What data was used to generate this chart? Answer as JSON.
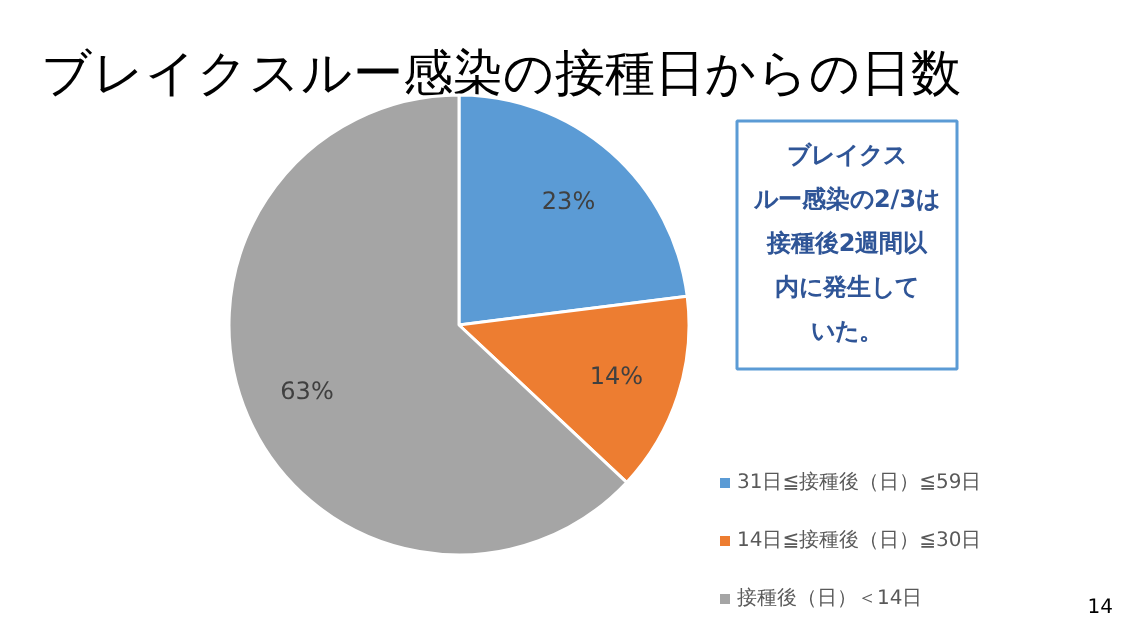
{
  "chart_data": {
    "type": "pie",
    "title": "ブレイクスルー感染の接種日からの日数",
    "categories": [
      "31日≦接種後（日）≦59日",
      "14日≦接種後（日）≦30日",
      "接種後（日）＜14日"
    ],
    "values": [
      23,
      14,
      63
    ],
    "colors": [
      "#5b9bd5",
      "#ed7d31",
      "#a5a5a5"
    ],
    "value_labels": [
      "23%",
      "14%",
      "63%"
    ],
    "legend": "bottom right",
    "annotations": [
      "ブレイクスルー感染の2/3は接種後2週間以内に発生していた。",
      "14"
    ]
  }
}
